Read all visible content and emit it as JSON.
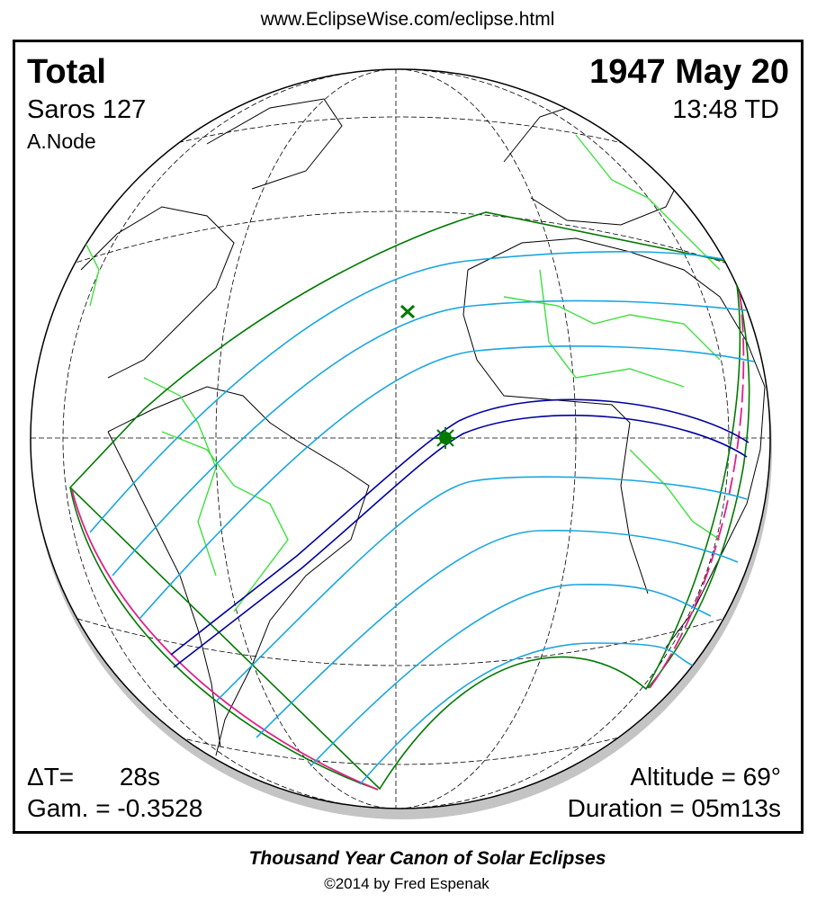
{
  "header": {
    "url": "www.EclipseWise.com/eclipse.html"
  },
  "map": {
    "eclipse_type": "Total",
    "date": "1947 May 20",
    "saros": "Saros 127",
    "time": "13:48 TD",
    "node": "A.Node",
    "delta_t_label": "ΔT=",
    "delta_t_value": "28s",
    "gamma": "Gam. = -0.3528",
    "altitude": "Altitude = 69°",
    "duration": "Duration = 05m13s"
  },
  "footer": {
    "title": "Thousand Year Canon of Solar Eclipses",
    "copyright": "©2014 by Fred Espenak"
  }
}
